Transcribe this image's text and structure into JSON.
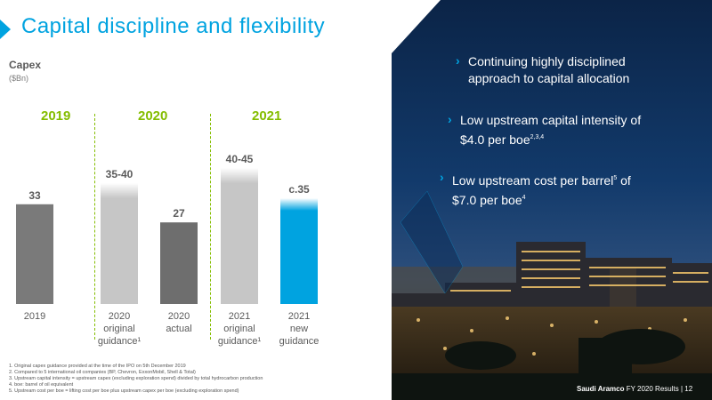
{
  "title": "Capital discipline and flexibility",
  "chart_label": "Capex",
  "chart_unit": "($Bn)",
  "years": [
    "2019",
    "2020",
    "2021"
  ],
  "chart_data": {
    "type": "bar",
    "categories": [
      "2019",
      "2020 original guidance¹",
      "2020 actual",
      "2021 original guidance¹",
      "2021 new guidance"
    ],
    "category_lines": [
      [
        "2019"
      ],
      [
        "2020",
        "original",
        "guidance¹"
      ],
      [
        "2020",
        "actual"
      ],
      [
        "2021",
        "original",
        "guidance¹"
      ],
      [
        "2021",
        "new",
        "guidance"
      ]
    ],
    "values": [
      33,
      40,
      27,
      45,
      35
    ],
    "ranges": [
      null,
      [
        35,
        40
      ],
      null,
      [
        40,
        45
      ],
      null
    ],
    "labels": [
      "33",
      "35-40",
      "27",
      "40-45",
      "c.35"
    ],
    "colors": [
      "#7a7a7a",
      "#c6c6c6",
      "#6e6e6e",
      "#c6c6c6",
      "#00a3e0"
    ],
    "ylim": [
      0,
      50
    ]
  },
  "bullets": [
    {
      "text": "Continuing highly disciplined approach to capital allocation",
      "lines": [
        "Continuing highly disciplined",
        "approach to capital allocation"
      ],
      "sup": [
        "",
        ""
      ]
    },
    {
      "text": "Low upstream capital intensity of $4.0 per boe2,3,4",
      "lines": [
        "Low upstream capital intensity of",
        "$4.0 per boe"
      ],
      "sup": [
        "",
        "2,3,4"
      ]
    },
    {
      "text": "Low upstream cost per barrel5 of $7.0 per boe4",
      "lines": [
        "Low upstream cost per barrel",
        "$7.0 per boe"
      ],
      "sup": [
        "5",
        "4"
      ],
      "after": [
        " of",
        ""
      ]
    }
  ],
  "footnotes": [
    "1. Original capex guidance provided at the time of the IPO on 5th December 2019",
    "2. Compared to 5 international oil companies (BP, Chevron, ExxonMobil, Shell & Total)",
    "3. Upstream capital intensity = upstream capex (excluding exploration spend) divided by total hydrocarbon production",
    "4. boe: barrel of oil equivalent",
    "5. Upstream cost per boe = lifting cost per boe plus upstream capex per boe (excluding exploration spend)"
  ],
  "footer": {
    "brand": "Saudi Aramco",
    "text": "FY 2020 Results",
    "separator": "|",
    "page": "12"
  },
  "palette": {
    "accent": "#00a3e0",
    "green": "#84bd00",
    "navy": "#0c2a52"
  }
}
